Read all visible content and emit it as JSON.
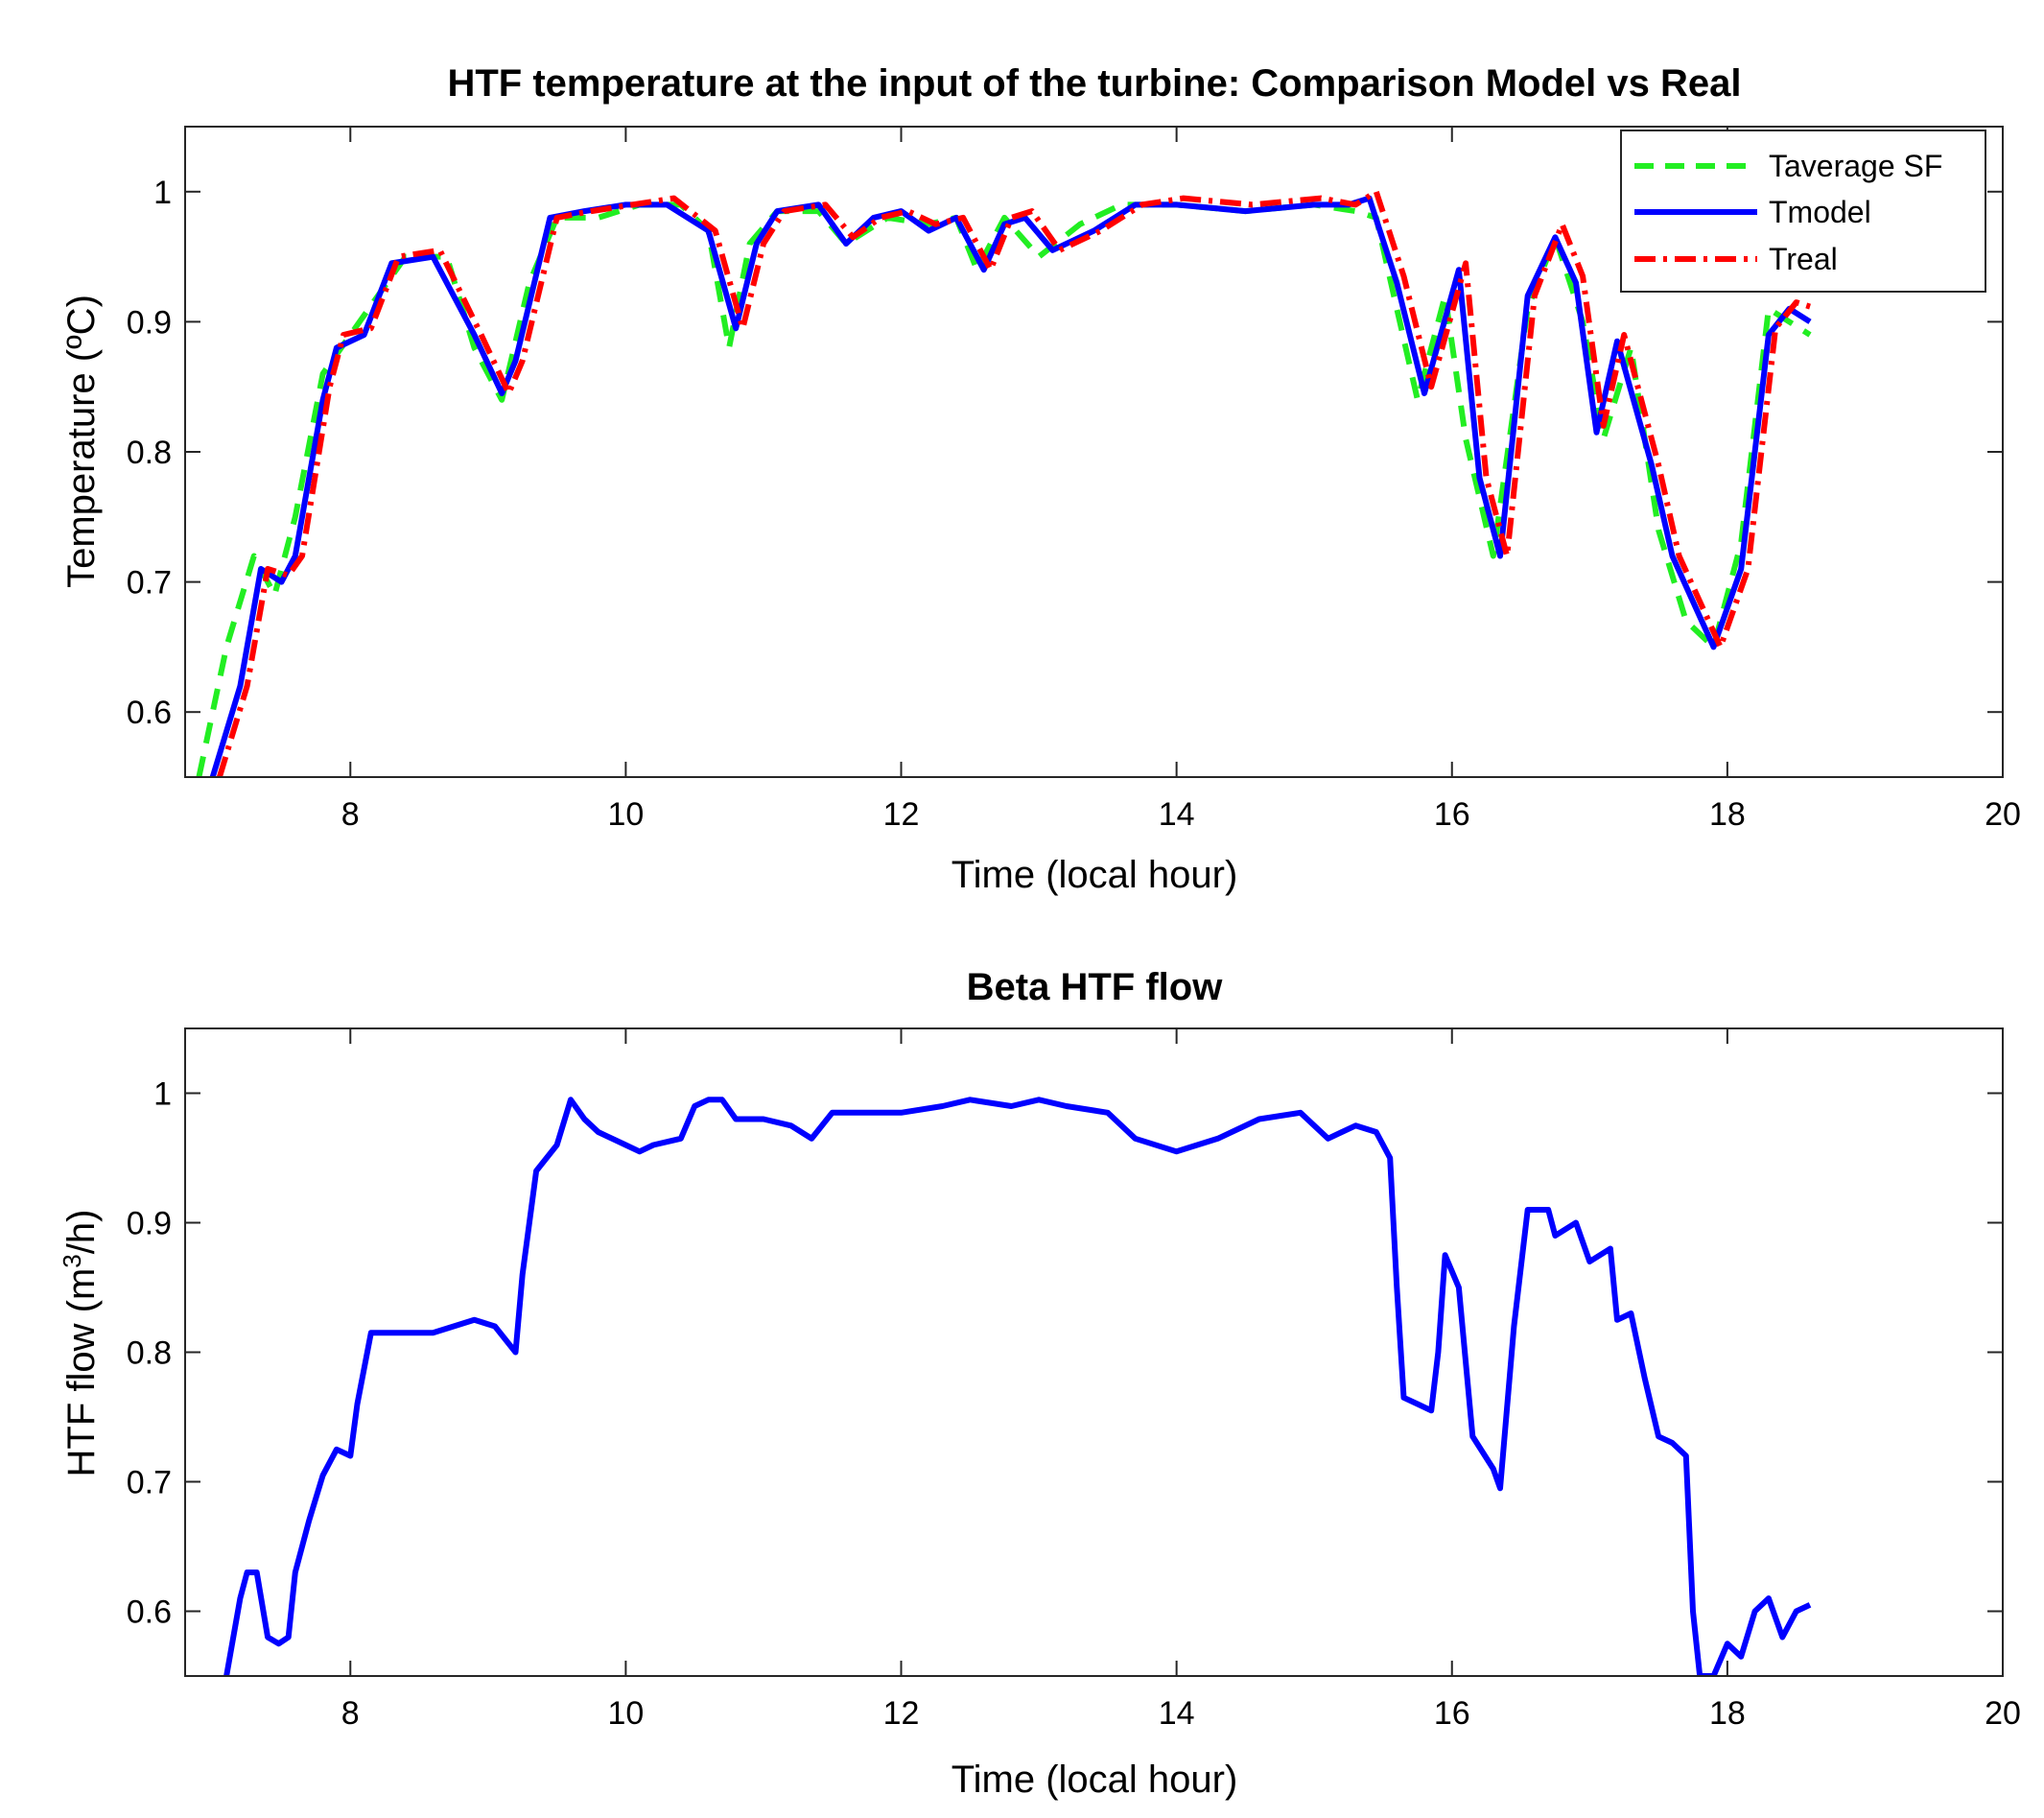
{
  "chart_data": [
    {
      "type": "line",
      "title": "HTF temperature at the input of the turbine: Comparison Model vs Real",
      "xlabel": "Time (local hour)",
      "ylabel": "Temperature (ºC)",
      "xlim": [
        6.8,
        20
      ],
      "ylim": [
        0.55,
        1.05
      ],
      "xticks": [
        8,
        10,
        12,
        14,
        16,
        18,
        20
      ],
      "yticks": [
        0.6,
        0.7,
        0.8,
        0.9,
        1
      ],
      "grid": false,
      "legend": "top-right",
      "series": [
        {
          "name": "Taverage SF",
          "color": "#22ee22",
          "style": "dashed",
          "x": [
            6.9,
            7.1,
            7.3,
            7.45,
            7.6,
            7.8,
            8.0,
            8.2,
            8.4,
            8.7,
            8.9,
            9.1,
            9.3,
            9.5,
            9.8,
            10.1,
            10.4,
            10.6,
            10.75,
            10.9,
            11.1,
            11.4,
            11.6,
            11.9,
            12.2,
            12.4,
            12.55,
            12.75,
            13.0,
            13.3,
            13.6,
            14.0,
            14.5,
            15.0,
            15.3,
            15.45,
            15.6,
            15.75,
            15.95,
            16.1,
            16.3,
            16.55,
            16.75,
            16.95,
            17.1,
            17.3,
            17.5,
            17.7,
            17.9,
            18.1,
            18.3,
            18.6
          ],
          "y": [
            0.55,
            0.65,
            0.72,
            0.69,
            0.75,
            0.86,
            0.89,
            0.92,
            0.95,
            0.95,
            0.88,
            0.84,
            0.93,
            0.98,
            0.98,
            0.99,
            0.99,
            0.97,
            0.88,
            0.96,
            0.985,
            0.985,
            0.96,
            0.98,
            0.975,
            0.98,
            0.94,
            0.98,
            0.95,
            0.975,
            0.99,
            0.99,
            0.985,
            0.99,
            0.985,
            0.98,
            0.91,
            0.84,
            0.92,
            0.81,
            0.72,
            0.91,
            0.965,
            0.9,
            0.81,
            0.88,
            0.74,
            0.67,
            0.65,
            0.73,
            0.91,
            0.89
          ]
        },
        {
          "name": "Tmodel",
          "color": "#0000ff",
          "style": "solid",
          "x": [
            7.0,
            7.2,
            7.35,
            7.5,
            7.6,
            7.8,
            7.9,
            8.1,
            8.3,
            8.6,
            8.9,
            9.1,
            9.2,
            9.45,
            9.7,
            10.0,
            10.3,
            10.6,
            10.8,
            10.95,
            11.1,
            11.4,
            11.6,
            11.8,
            12.0,
            12.2,
            12.4,
            12.6,
            12.75,
            12.9,
            13.1,
            13.4,
            13.7,
            14.0,
            14.5,
            15.0,
            15.25,
            15.4,
            15.6,
            15.8,
            16.05,
            16.2,
            16.35,
            16.55,
            16.75,
            16.9,
            17.05,
            17.2,
            17.45,
            17.6,
            17.9,
            18.1,
            18.3,
            18.45,
            18.6
          ],
          "y": [
            0.55,
            0.62,
            0.71,
            0.7,
            0.72,
            0.84,
            0.88,
            0.89,
            0.945,
            0.95,
            0.89,
            0.845,
            0.87,
            0.98,
            0.985,
            0.99,
            0.99,
            0.97,
            0.895,
            0.96,
            0.985,
            0.99,
            0.96,
            0.98,
            0.985,
            0.97,
            0.98,
            0.94,
            0.975,
            0.98,
            0.955,
            0.97,
            0.99,
            0.99,
            0.985,
            0.99,
            0.99,
            0.995,
            0.93,
            0.845,
            0.94,
            0.78,
            0.72,
            0.92,
            0.965,
            0.93,
            0.815,
            0.885,
            0.79,
            0.72,
            0.65,
            0.71,
            0.89,
            0.91,
            0.9
          ]
        },
        {
          "name": "Treal",
          "color": "#ff0000",
          "style": "dash-dot",
          "x": [
            7.05,
            7.25,
            7.4,
            7.55,
            7.65,
            7.85,
            7.95,
            8.15,
            8.35,
            8.65,
            8.95,
            9.15,
            9.25,
            9.5,
            9.75,
            10.05,
            10.35,
            10.65,
            10.85,
            11.0,
            11.15,
            11.45,
            11.65,
            11.85,
            12.05,
            12.25,
            12.45,
            12.65,
            12.8,
            12.95,
            13.15,
            13.45,
            13.75,
            14.05,
            14.55,
            15.05,
            15.3,
            15.45,
            15.65,
            15.85,
            16.1,
            16.25,
            16.4,
            16.6,
            16.8,
            16.95,
            17.1,
            17.25,
            17.5,
            17.65,
            17.95,
            18.15,
            18.35,
            18.5,
            18.65
          ],
          "y": [
            0.55,
            0.62,
            0.71,
            0.705,
            0.72,
            0.85,
            0.89,
            0.895,
            0.95,
            0.955,
            0.89,
            0.845,
            0.87,
            0.98,
            0.985,
            0.99,
            0.995,
            0.97,
            0.895,
            0.96,
            0.985,
            0.99,
            0.965,
            0.98,
            0.985,
            0.975,
            0.98,
            0.94,
            0.98,
            0.985,
            0.955,
            0.97,
            0.99,
            0.995,
            0.99,
            0.995,
            0.99,
            1.0,
            0.935,
            0.85,
            0.945,
            0.78,
            0.72,
            0.92,
            0.975,
            0.935,
            0.82,
            0.89,
            0.79,
            0.72,
            0.65,
            0.71,
            0.895,
            0.915,
            0.91
          ]
        }
      ]
    },
    {
      "type": "line",
      "title": "Beta HTF flow",
      "xlabel": "Time (local hour)",
      "ylabel_main": "HTF flow (m",
      "ylabel_sup": "3",
      "ylabel_end": "/h)",
      "xlim": [
        6.8,
        20
      ],
      "ylim": [
        0.55,
        1.05
      ],
      "xticks": [
        8,
        10,
        12,
        14,
        16,
        18,
        20
      ],
      "yticks": [
        0.6,
        0.7,
        0.8,
        0.9,
        1
      ],
      "grid": false,
      "series": [
        {
          "color": "#0000ff",
          "style": "solid",
          "x": [
            7.1,
            7.2,
            7.25,
            7.32,
            7.4,
            7.48,
            7.55,
            7.6,
            7.7,
            7.8,
            7.9,
            8.0,
            8.05,
            8.15,
            8.3,
            8.6,
            8.9,
            9.05,
            9.2,
            9.25,
            9.35,
            9.5,
            9.6,
            9.7,
            9.8,
            10.0,
            10.1,
            10.2,
            10.4,
            10.5,
            10.6,
            10.7,
            10.8,
            11.0,
            11.2,
            11.35,
            11.5,
            11.8,
            12.0,
            12.3,
            12.5,
            12.8,
            13.0,
            13.2,
            13.5,
            13.7,
            14.0,
            14.3,
            14.6,
            14.9,
            15.1,
            15.3,
            15.45,
            15.55,
            15.6,
            15.65,
            15.75,
            15.85,
            15.9,
            15.95,
            16.05,
            16.15,
            16.3,
            16.35,
            16.45,
            16.55,
            16.7,
            16.75,
            16.9,
            17.0,
            17.15,
            17.2,
            17.3,
            17.4,
            17.5,
            17.6,
            17.7,
            17.75,
            17.8,
            17.9,
            18.0,
            18.1,
            18.2,
            18.3,
            18.4,
            18.5,
            18.6
          ],
          "y": [
            0.55,
            0.61,
            0.63,
            0.63,
            0.58,
            0.575,
            0.58,
            0.63,
            0.67,
            0.705,
            0.725,
            0.72,
            0.76,
            0.815,
            0.815,
            0.815,
            0.825,
            0.82,
            0.8,
            0.86,
            0.94,
            0.96,
            0.995,
            0.98,
            0.97,
            0.96,
            0.955,
            0.96,
            0.965,
            0.99,
            0.995,
            0.995,
            0.98,
            0.98,
            0.975,
            0.965,
            0.985,
            0.985,
            0.985,
            0.99,
            0.995,
            0.99,
            0.995,
            0.99,
            0.985,
            0.965,
            0.955,
            0.965,
            0.98,
            0.985,
            0.965,
            0.975,
            0.97,
            0.95,
            0.85,
            0.765,
            0.76,
            0.755,
            0.8,
            0.875,
            0.85,
            0.735,
            0.71,
            0.695,
            0.82,
            0.91,
            0.91,
            0.89,
            0.9,
            0.87,
            0.88,
            0.825,
            0.83,
            0.78,
            0.735,
            0.73,
            0.72,
            0.6,
            0.55,
            0.55,
            0.575,
            0.565,
            0.6,
            0.61,
            0.58,
            0.6,
            0.605
          ]
        }
      ]
    }
  ]
}
